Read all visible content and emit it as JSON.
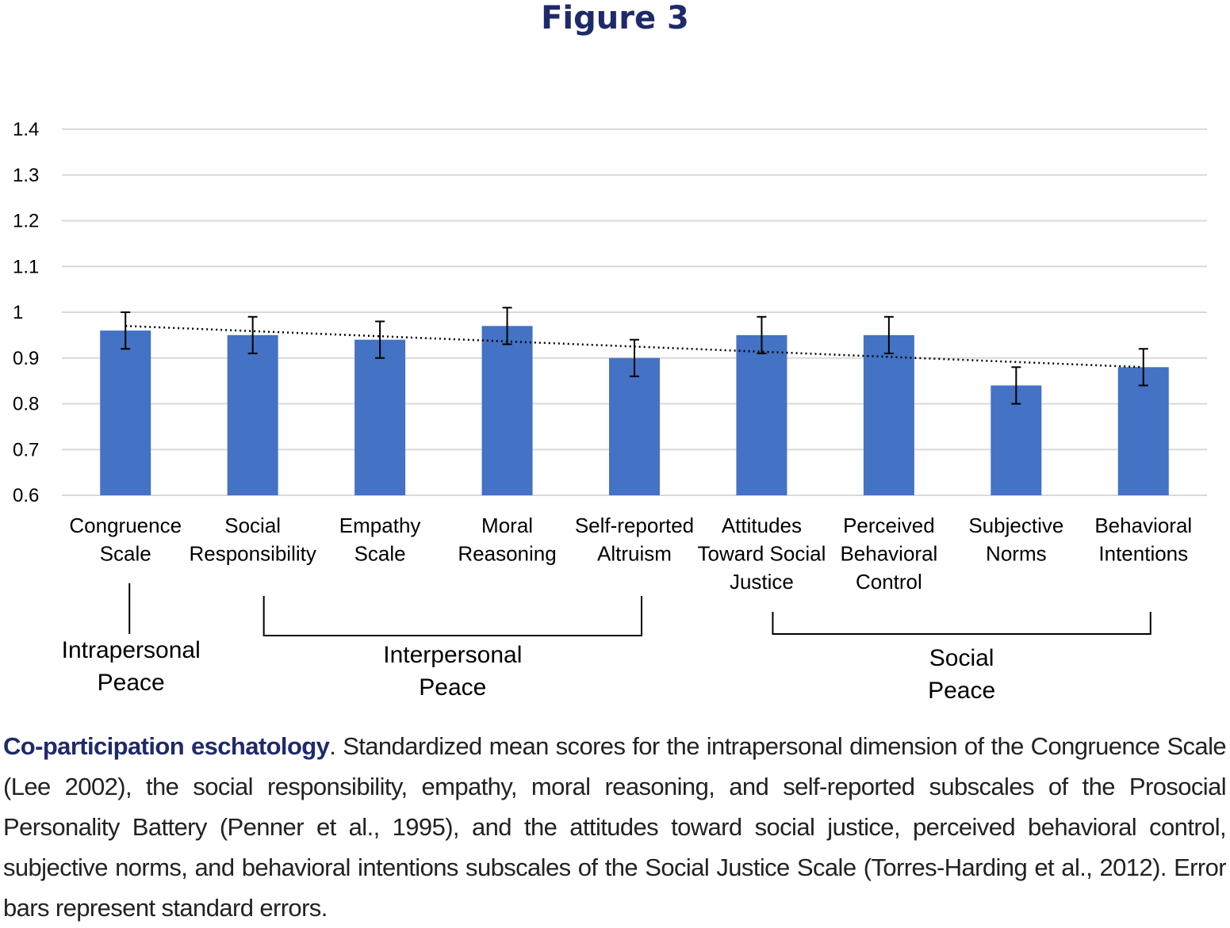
{
  "figure_label": "Figure 3",
  "caption": {
    "heading": "Co-participation eschatology",
    "text": ". Standardized mean scores for the intrapersonal dimension of the Congruence Scale (Lee 2002), the social responsibility, empathy, moral reasoning, and self-reported subscales of the Prosocial Personality Battery (Penner et al., 1995), and the attitudes toward social justice, perceived behavioral control, subjective norms, and behavioral intentions subscales of the Social Justice Scale (Torres-Harding et al., 2012). Error bars represent standard errors."
  },
  "chart_data": {
    "type": "bar",
    "title": "",
    "xlabel": "",
    "ylabel": "",
    "ylim": [
      0.6,
      1.4
    ],
    "yticks": [
      "0.6",
      "0.7",
      "0.8",
      "0.9",
      "1",
      "1.1",
      "1.2",
      "1.3",
      "1.4"
    ],
    "grid": true,
    "legend": "none",
    "categories": [
      [
        "Congruence",
        "Scale"
      ],
      [
        "Social",
        "Responsibility"
      ],
      [
        "Empathy",
        "Scale"
      ],
      [
        "Moral",
        "Reasoning"
      ],
      [
        "Self-reported",
        "Altruism"
      ],
      [
        "Attitudes",
        "Toward Social",
        "Justice"
      ],
      [
        "Perceived",
        "Behavioral",
        "Control"
      ],
      [
        "Subjective",
        "Norms"
      ],
      [
        "Behavioral",
        "Intentions"
      ]
    ],
    "values": [
      0.96,
      0.95,
      0.94,
      0.97,
      0.9,
      0.95,
      0.95,
      0.84,
      0.88
    ],
    "error": [
      0.04,
      0.04,
      0.04,
      0.04,
      0.04,
      0.04,
      0.04,
      0.04,
      0.04
    ],
    "trendline": {
      "style": "dotted",
      "start": 0.97,
      "end": 0.88
    },
    "groups": [
      {
        "label": [
          "Intrapersonal",
          "Peace"
        ],
        "from": 0,
        "to": 0
      },
      {
        "label": [
          "Interpersonal",
          "Peace"
        ],
        "from": 1,
        "to": 4
      },
      {
        "label": [
          "Social",
          "Peace"
        ],
        "from": 5,
        "to": 8
      }
    ],
    "colors": {
      "bar": "#4472c4",
      "grid": "#d9d9d9",
      "error": "#000000",
      "trend": "#000000"
    }
  }
}
